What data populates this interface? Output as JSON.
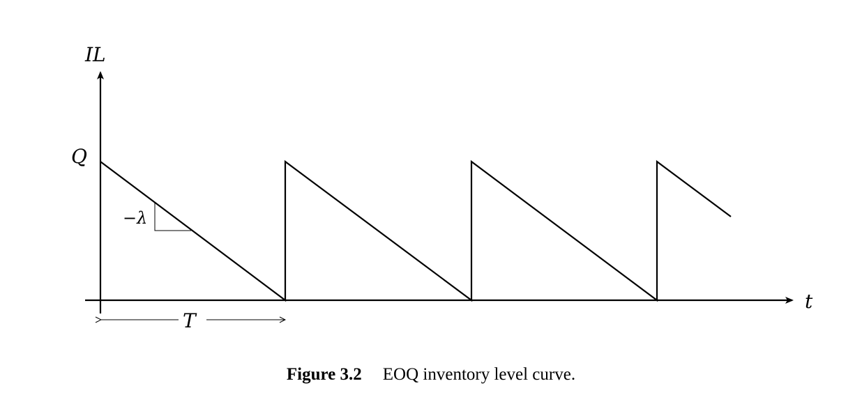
{
  "figure": {
    "y_axis_label": "IL",
    "x_axis_label": "t",
    "level_label": "Q",
    "slope_label": "−λ",
    "period_label": "T",
    "caption_number": "Figure 3.2",
    "caption_text": "EOQ inventory level curve."
  },
  "diagram": {
    "type": "sawtooth",
    "cycles_shown": 3.4,
    "peak_value": "Q",
    "trough_value": 0
  }
}
